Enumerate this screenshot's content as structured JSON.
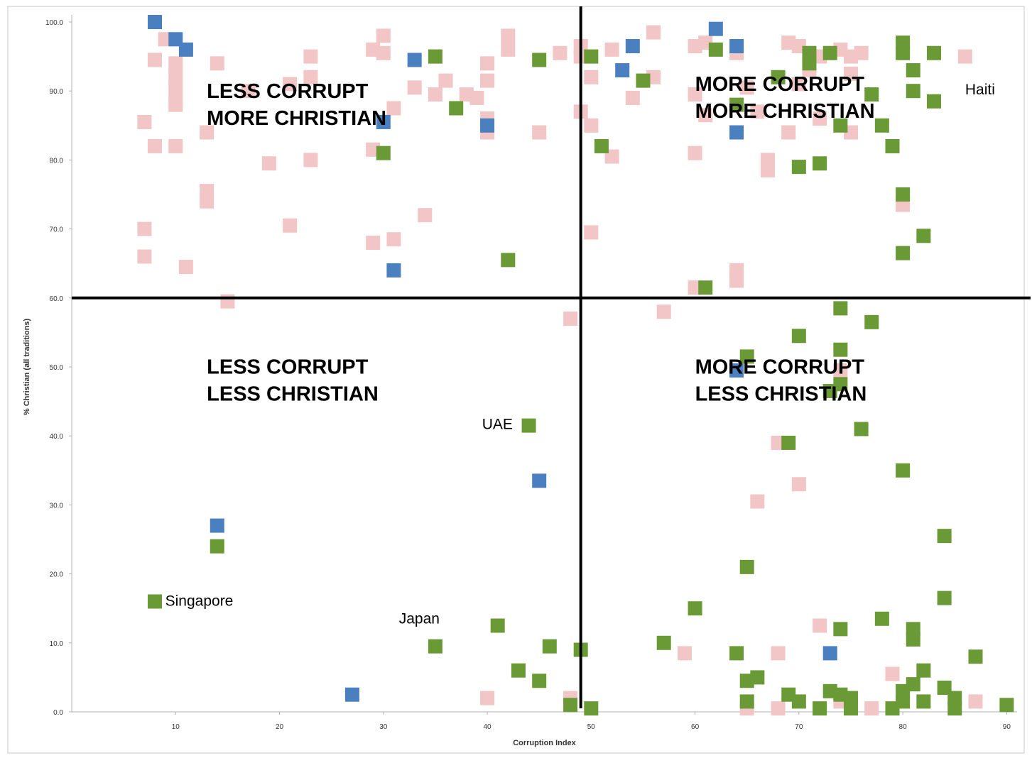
{
  "chart_data": {
    "type": "scatter",
    "title": "",
    "xlabel": "Corruption Index",
    "ylabel": "% Christian (all traditions)",
    "xlim": [
      0,
      91
    ],
    "ylim": [
      0,
      100
    ],
    "x_ticks": [
      10,
      20,
      30,
      40,
      50,
      60,
      70,
      80,
      90
    ],
    "y_ticks": [
      0,
      10,
      20,
      30,
      40,
      50,
      60,
      70,
      80,
      90,
      100
    ],
    "x_tick_labels": [
      "10",
      "20",
      "30",
      "40",
      "50",
      "60",
      "70",
      "80",
      "90"
    ],
    "y_tick_labels": [
      "0.0",
      "10.0",
      "20.0",
      "30.0",
      "40.0",
      "50.0",
      "60.0",
      "70.0",
      "80.0",
      "90.0",
      "100.0"
    ],
    "grid": false,
    "dividers": {
      "x": 49,
      "y": 60
    },
    "quadrant_labels": [
      {
        "lines": [
          "LESS CORRUPT",
          "MORE CHRISTIAN"
        ],
        "x": 13,
        "y": 89
      },
      {
        "lines": [
          "MORE CORRUPT",
          "MORE CHRISTIAN"
        ],
        "x": 60,
        "y": 90
      },
      {
        "lines": [
          "LESS CORRUPT",
          "LESS CHRISTIAN"
        ],
        "x": 13,
        "y": 49
      },
      {
        "lines": [
          "MORE CORRUPT",
          "LESS CHRISTIAN"
        ],
        "x": 60,
        "y": 49
      }
    ],
    "annotations": [
      {
        "text": "Haiti",
        "x": 86,
        "y": 89.5
      },
      {
        "text": "Singapore",
        "x": 9,
        "y": 15.4
      },
      {
        "text": "Japan",
        "x": 31.5,
        "y": 12.8
      },
      {
        "text": "UAE",
        "x": 39.5,
        "y": 41
      }
    ],
    "series": [
      {
        "color": "#f2c6c6",
        "points": [
          [
            8,
            94.5
          ],
          [
            9,
            97.5
          ],
          [
            10,
            94
          ],
          [
            10,
            92
          ],
          [
            10,
            90
          ],
          [
            10,
            88
          ],
          [
            7,
            85.5
          ],
          [
            8,
            82
          ],
          [
            10,
            82
          ],
          [
            13,
            84
          ],
          [
            14,
            94
          ],
          [
            17,
            90
          ],
          [
            21,
            91
          ],
          [
            23,
            95
          ],
          [
            23,
            92
          ],
          [
            19,
            79.5
          ],
          [
            23,
            80
          ],
          [
            13,
            75.5
          ],
          [
            13,
            74
          ],
          [
            21,
            70.5
          ],
          [
            7,
            70
          ],
          [
            7,
            66
          ],
          [
            11,
            64.5
          ],
          [
            15,
            59.5
          ],
          [
            29,
            96
          ],
          [
            30,
            98
          ],
          [
            30,
            95.5
          ],
          [
            31,
            87.5
          ],
          [
            33,
            90.5
          ],
          [
            35,
            95
          ],
          [
            35,
            89.5
          ],
          [
            36,
            91.5
          ],
          [
            29,
            81.5
          ],
          [
            34,
            72
          ],
          [
            29,
            68
          ],
          [
            31,
            68.5
          ],
          [
            38,
            89.5
          ],
          [
            39,
            89
          ],
          [
            40,
            94
          ],
          [
            40,
            91.5
          ],
          [
            40,
            86
          ],
          [
            40,
            84
          ],
          [
            42,
            96
          ],
          [
            42,
            98
          ],
          [
            45,
            84
          ],
          [
            47,
            95.5
          ],
          [
            48,
            57
          ],
          [
            40,
            2
          ],
          [
            48,
            2
          ],
          [
            49,
            96.5
          ],
          [
            49,
            95
          ],
          [
            49,
            87
          ],
          [
            50,
            92
          ],
          [
            50,
            85
          ],
          [
            50,
            69.5
          ],
          [
            52,
            80.5
          ],
          [
            52,
            96
          ],
          [
            56,
            98.5
          ],
          [
            56,
            92
          ],
          [
            54,
            89
          ],
          [
            57,
            58
          ],
          [
            60,
            96.5
          ],
          [
            60,
            89.5
          ],
          [
            60,
            81
          ],
          [
            60,
            61.5
          ],
          [
            61,
            97
          ],
          [
            61,
            86.5
          ],
          [
            64,
            95.5
          ],
          [
            64,
            64
          ],
          [
            64,
            62.5
          ],
          [
            65,
            90.5
          ],
          [
            66,
            87
          ],
          [
            67,
            80
          ],
          [
            67,
            78.5
          ],
          [
            69,
            97
          ],
          [
            69,
            84
          ],
          [
            70,
            96.5
          ],
          [
            70,
            91
          ],
          [
            71,
            93
          ],
          [
            72,
            95
          ],
          [
            72,
            86
          ],
          [
            74,
            96
          ],
          [
            75,
            95
          ],
          [
            75,
            92.5
          ],
          [
            75,
            84
          ],
          [
            76,
            95.5
          ],
          [
            80,
            73.5
          ],
          [
            86,
            95
          ],
          [
            68,
            39
          ],
          [
            70,
            33
          ],
          [
            66,
            30.5
          ],
          [
            74,
            49.5
          ],
          [
            59,
            8.5
          ],
          [
            65,
            0.5
          ],
          [
            68,
            0.5
          ],
          [
            68,
            8.5
          ],
          [
            72,
            12.5
          ],
          [
            74,
            1.5
          ],
          [
            77,
            0.5
          ],
          [
            79,
            5.5
          ],
          [
            87,
            1.5
          ]
        ]
      },
      {
        "color": "#4a7fc0",
        "points": [
          [
            8,
            100
          ],
          [
            10,
            97.5
          ],
          [
            11,
            96
          ],
          [
            30,
            85.5
          ],
          [
            31,
            64
          ],
          [
            33,
            94.5
          ],
          [
            40,
            85
          ],
          [
            54,
            96.5
          ],
          [
            53,
            93
          ],
          [
            62,
            99
          ],
          [
            64,
            96.5
          ],
          [
            64,
            84
          ],
          [
            64,
            49.5
          ],
          [
            14,
            27
          ],
          [
            27,
            2.5
          ],
          [
            45,
            33.5
          ],
          [
            73,
            8.5
          ]
        ]
      },
      {
        "color": "#6a9a35",
        "points": [
          [
            35,
            95
          ],
          [
            37,
            87.5
          ],
          [
            30,
            81
          ],
          [
            42,
            65.5
          ],
          [
            45,
            94.5
          ],
          [
            50,
            95
          ],
          [
            51,
            82
          ],
          [
            55,
            91.5
          ],
          [
            62,
            96
          ],
          [
            64,
            88
          ],
          [
            68,
            92
          ],
          [
            70,
            79
          ],
          [
            71,
            95.5
          ],
          [
            71,
            94
          ],
          [
            72,
            79.5
          ],
          [
            73,
            95.5
          ],
          [
            74,
            85
          ],
          [
            77,
            89.5
          ],
          [
            78,
            85
          ],
          [
            79,
            82
          ],
          [
            80,
            97
          ],
          [
            80,
            95.5
          ],
          [
            81,
            93
          ],
          [
            81,
            90
          ],
          [
            80,
            75
          ],
          [
            80,
            66.5
          ],
          [
            82,
            69
          ],
          [
            83,
            95.5
          ],
          [
            83,
            88.5
          ],
          [
            61,
            61.5
          ],
          [
            65,
            51.5
          ],
          [
            70,
            54.5
          ],
          [
            73,
            46.5
          ],
          [
            74,
            58.5
          ],
          [
            74,
            52.5
          ],
          [
            74,
            47.5
          ],
          [
            77,
            56.5
          ],
          [
            76,
            41
          ],
          [
            69,
            39
          ],
          [
            80,
            35
          ],
          [
            84,
            25.5
          ],
          [
            65,
            21
          ],
          [
            84,
            16.5
          ],
          [
            60,
            15
          ],
          [
            14,
            24
          ],
          [
            8,
            16
          ],
          [
            44,
            41.5
          ],
          [
            35,
            9.5
          ],
          [
            41,
            12.5
          ],
          [
            43,
            6
          ],
          [
            45,
            4.5
          ],
          [
            46,
            9.5
          ],
          [
            48,
            1
          ],
          [
            49,
            9
          ],
          [
            50,
            0.5
          ],
          [
            57,
            10
          ],
          [
            64,
            8.5
          ],
          [
            65,
            4.5
          ],
          [
            65,
            1.5
          ],
          [
            66,
            5
          ],
          [
            69,
            2.5
          ],
          [
            70,
            1.5
          ],
          [
            72,
            0.5
          ],
          [
            73,
            3
          ],
          [
            74,
            2.5
          ],
          [
            74,
            12
          ],
          [
            75,
            2
          ],
          [
            75,
            0.5
          ],
          [
            78,
            13.5
          ],
          [
            79,
            0.5
          ],
          [
            80,
            3
          ],
          [
            80,
            1.5
          ],
          [
            81,
            4
          ],
          [
            81,
            12
          ],
          [
            81,
            10.5
          ],
          [
            82,
            6
          ],
          [
            82,
            1.5
          ],
          [
            84,
            3.5
          ],
          [
            85,
            2
          ],
          [
            85,
            0.5
          ],
          [
            87,
            8
          ],
          [
            90,
            1
          ]
        ]
      }
    ]
  }
}
